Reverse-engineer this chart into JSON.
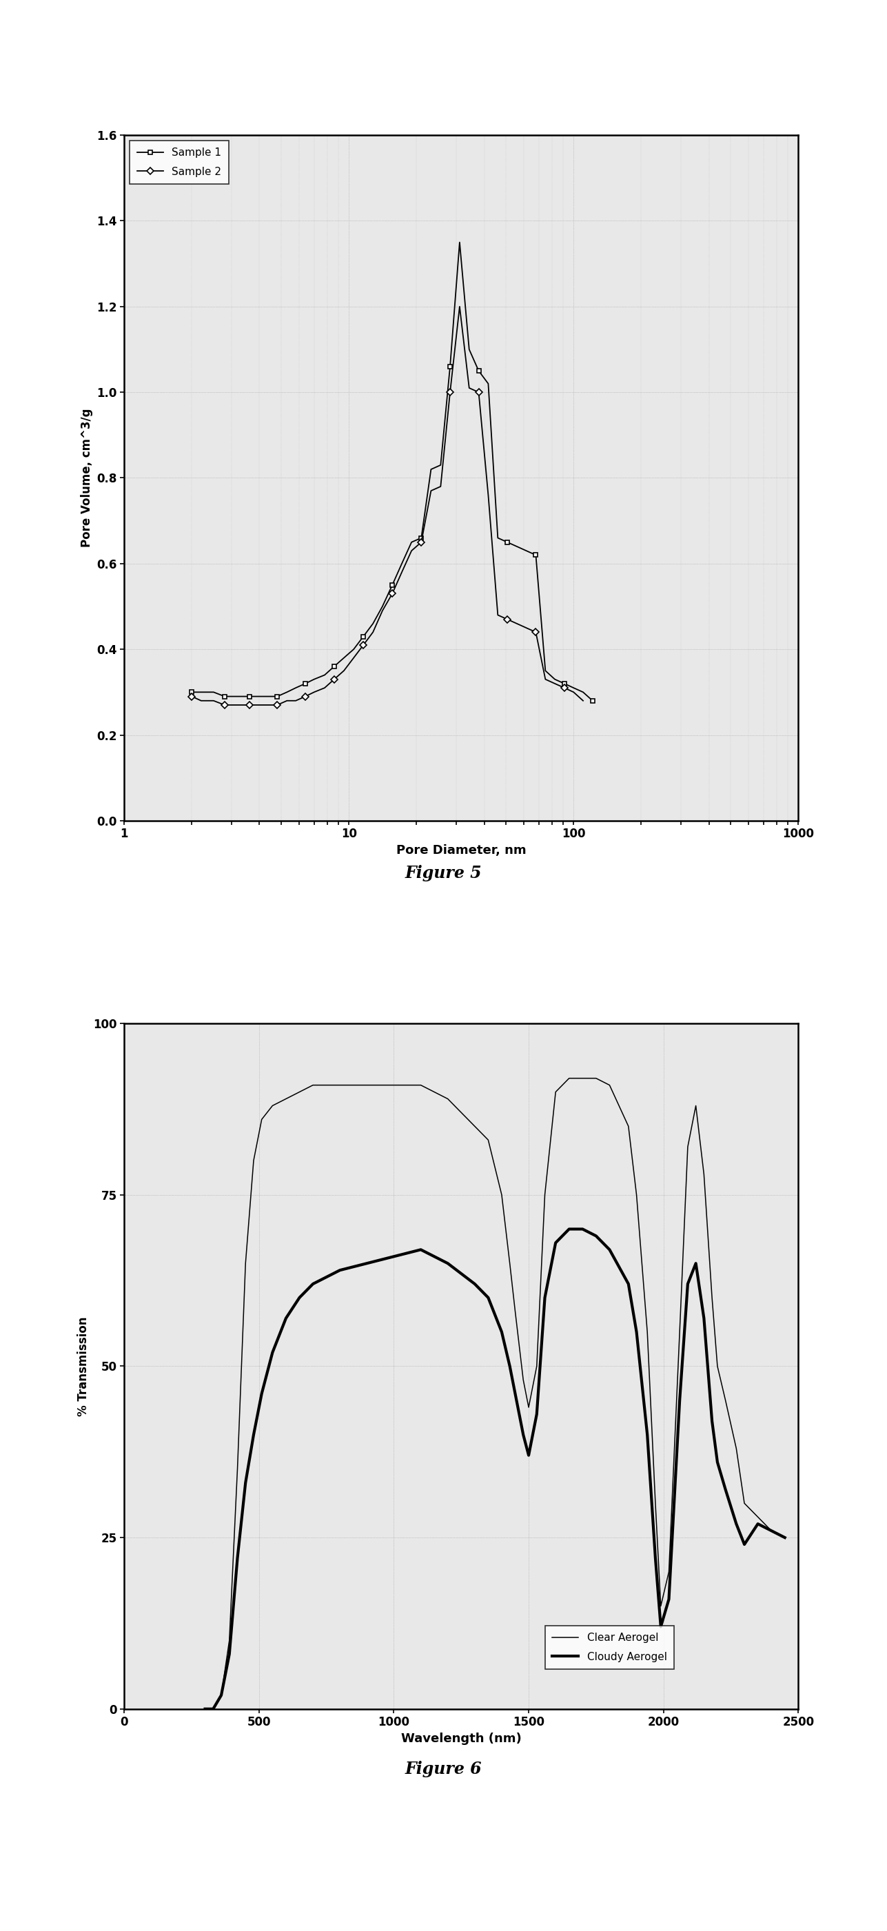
{
  "fig5": {
    "title": "Figure 5",
    "xlabel": "Pore Diameter, nm",
    "ylabel": "Pore Volume, cm^3/g",
    "ylim": [
      0.0,
      1.6
    ],
    "yticks": [
      0.0,
      0.2,
      0.4,
      0.6,
      0.8,
      1.0,
      1.2,
      1.4,
      1.6
    ],
    "xlim": [
      1,
      1000
    ],
    "sample1_x": [
      2.0,
      2.2,
      2.5,
      2.8,
      3.0,
      3.3,
      3.6,
      4.0,
      4.4,
      4.8,
      5.3,
      5.8,
      6.4,
      7.0,
      7.8,
      8.6,
      9.5,
      10.5,
      11.6,
      12.8,
      14.1,
      15.6,
      17.2,
      19.0,
      21.0,
      23.2,
      25.6,
      28.2,
      31.1,
      34.3,
      37.8,
      41.7,
      46.0,
      50.7,
      55.9,
      61.6,
      67.9,
      74.9,
      82.5,
      91.0,
      100.0,
      110.2,
      121.5
    ],
    "sample1_y": [
      0.3,
      0.3,
      0.3,
      0.29,
      0.29,
      0.29,
      0.29,
      0.29,
      0.29,
      0.29,
      0.3,
      0.31,
      0.32,
      0.33,
      0.34,
      0.36,
      0.38,
      0.4,
      0.43,
      0.46,
      0.5,
      0.55,
      0.6,
      0.65,
      0.66,
      0.82,
      0.83,
      1.06,
      1.35,
      1.1,
      1.05,
      1.02,
      0.66,
      0.65,
      0.64,
      0.63,
      0.62,
      0.35,
      0.33,
      0.32,
      0.31,
      0.3,
      0.28
    ],
    "sample2_x": [
      2.0,
      2.2,
      2.5,
      2.8,
      3.0,
      3.3,
      3.6,
      4.0,
      4.4,
      4.8,
      5.3,
      5.8,
      6.4,
      7.0,
      7.8,
      8.6,
      9.5,
      10.5,
      11.6,
      12.8,
      14.1,
      15.6,
      17.2,
      19.0,
      21.0,
      23.2,
      25.6,
      28.2,
      31.1,
      34.3,
      37.8,
      41.7,
      46.0,
      50.7,
      55.9,
      61.6,
      67.9,
      74.9,
      82.5,
      91.0,
      100.0,
      110.2
    ],
    "sample2_y": [
      0.29,
      0.28,
      0.28,
      0.27,
      0.27,
      0.27,
      0.27,
      0.27,
      0.27,
      0.27,
      0.28,
      0.28,
      0.29,
      0.3,
      0.31,
      0.33,
      0.35,
      0.38,
      0.41,
      0.44,
      0.49,
      0.53,
      0.58,
      0.63,
      0.65,
      0.77,
      0.78,
      1.0,
      1.2,
      1.01,
      1.0,
      0.76,
      0.48,
      0.47,
      0.46,
      0.45,
      0.44,
      0.33,
      0.32,
      0.31,
      0.3,
      0.28
    ],
    "background": "#e8e8e8",
    "grid_color": "#999999",
    "line_color": "#000000"
  },
  "fig6": {
    "title": "Figure 6",
    "xlabel": "Wavelength (nm)",
    "ylabel": "% Transmission",
    "ylim": [
      0,
      100
    ],
    "yticks": [
      0,
      25,
      50,
      75,
      100
    ],
    "xlim": [
      0,
      2500
    ],
    "xticks": [
      0,
      500,
      1000,
      1500,
      2000,
      2500
    ],
    "clear_x": [
      300,
      330,
      360,
      390,
      420,
      450,
      480,
      510,
      550,
      600,
      650,
      700,
      750,
      800,
      900,
      1000,
      1100,
      1200,
      1300,
      1350,
      1400,
      1430,
      1450,
      1480,
      1500,
      1530,
      1560,
      1600,
      1650,
      1700,
      1750,
      1800,
      1870,
      1900,
      1940,
      1970,
      1990,
      2020,
      2060,
      2090,
      2120,
      2150,
      2180,
      2200,
      2230,
      2270,
      2300,
      2350,
      2400,
      2450
    ],
    "clear_y": [
      0,
      0,
      2,
      10,
      35,
      65,
      80,
      86,
      88,
      89,
      90,
      91,
      91,
      91,
      91,
      91,
      91,
      89,
      85,
      83,
      75,
      65,
      58,
      48,
      44,
      50,
      75,
      90,
      92,
      92,
      92,
      91,
      85,
      75,
      55,
      30,
      15,
      20,
      55,
      82,
      88,
      78,
      60,
      50,
      45,
      38,
      30,
      28,
      26,
      25
    ],
    "cloudy_x": [
      300,
      330,
      360,
      390,
      420,
      450,
      480,
      510,
      550,
      600,
      650,
      700,
      750,
      800,
      900,
      1000,
      1100,
      1200,
      1300,
      1350,
      1400,
      1430,
      1450,
      1480,
      1500,
      1530,
      1560,
      1600,
      1650,
      1700,
      1750,
      1800,
      1870,
      1900,
      1940,
      1970,
      1990,
      2020,
      2060,
      2090,
      2120,
      2150,
      2180,
      2200,
      2230,
      2270,
      2300,
      2350,
      2400,
      2450
    ],
    "cloudy_y": [
      0,
      0,
      2,
      8,
      22,
      33,
      40,
      46,
      52,
      57,
      60,
      62,
      63,
      64,
      65,
      66,
      67,
      65,
      62,
      60,
      55,
      50,
      46,
      40,
      37,
      43,
      60,
      68,
      70,
      70,
      69,
      67,
      62,
      55,
      40,
      22,
      12,
      16,
      45,
      62,
      65,
      57,
      42,
      36,
      32,
      27,
      24,
      27,
      26,
      25
    ],
    "background": "#e8e8e8",
    "grid_color": "#999999",
    "line_color": "#000000"
  }
}
